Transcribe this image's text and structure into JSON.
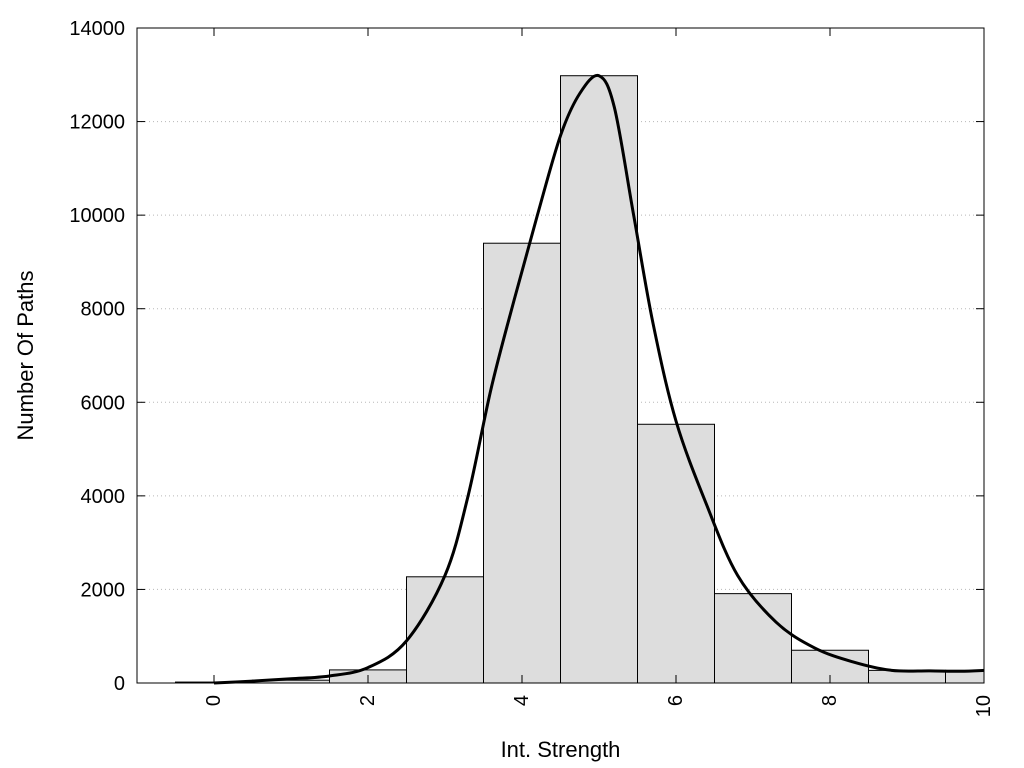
{
  "chart_data": {
    "type": "bar",
    "title": "",
    "xlabel": "Int. Strength",
    "ylabel": "Number Of Paths",
    "xlim": [
      -1,
      10
    ],
    "ylim": [
      0,
      14000
    ],
    "grid": true,
    "bar_color": "#dddddd",
    "curve_color": "#000000",
    "x_ticks": [
      0,
      2,
      4,
      6,
      8,
      10
    ],
    "y_ticks": [
      0,
      2000,
      4000,
      6000,
      8000,
      10000,
      12000,
      14000
    ],
    "x_tick_labels": [
      "0",
      "2",
      "4",
      "6",
      "8",
      "10"
    ],
    "y_tick_labels": [
      "0",
      "2000",
      "4000",
      "6000",
      "8000",
      "10000",
      "12000",
      "14000"
    ],
    "bins": [
      {
        "center": 0,
        "value": 20
      },
      {
        "center": 1,
        "value": 60
      },
      {
        "center": 2,
        "value": 280
      },
      {
        "center": 3,
        "value": 2270
      },
      {
        "center": 4,
        "value": 9400
      },
      {
        "center": 5,
        "value": 12980
      },
      {
        "center": 6,
        "value": 5530
      },
      {
        "center": 7,
        "value": 1910
      },
      {
        "center": 8,
        "value": 700
      },
      {
        "center": 9,
        "value": 270
      },
      {
        "center": 10,
        "value": 270
      }
    ],
    "series": [
      {
        "type": "line",
        "x": [
          0,
          0.5,
          1,
          1.5,
          2,
          2.5,
          3,
          3.3,
          3.6,
          3.9,
          4.2,
          4.5,
          4.75,
          5,
          5.2,
          5.45,
          5.7,
          6,
          6.4,
          6.8,
          7.3,
          7.8,
          8.3,
          8.8,
          9.3,
          9.7,
          10
        ],
        "y": [
          0,
          40,
          90,
          150,
          330,
          900,
          2300,
          4000,
          6300,
          8200,
          10000,
          11700,
          12600,
          12980,
          12300,
          10000,
          7700,
          5600,
          3800,
          2300,
          1300,
          750,
          450,
          270,
          260,
          250,
          270
        ]
      }
    ]
  }
}
